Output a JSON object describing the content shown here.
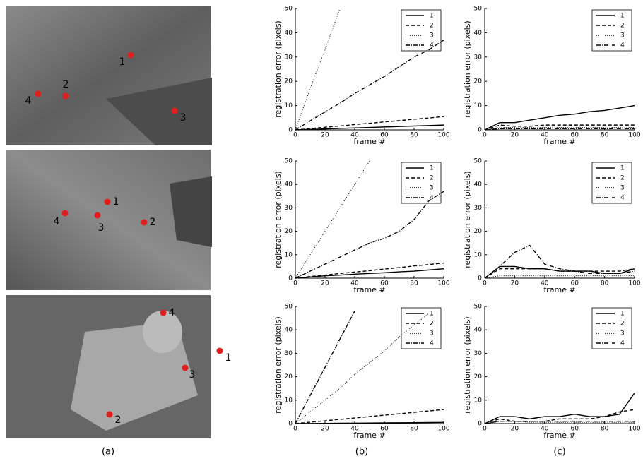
{
  "captions": [
    "(a)",
    "(b)",
    "(c)"
  ],
  "photos": [
    {
      "markers": [
        {
          "label": "1"
        },
        {
          "label": "2"
        },
        {
          "label": "3"
        },
        {
          "label": "4"
        }
      ]
    },
    {
      "markers": [
        {
          "label": "1"
        },
        {
          "label": "2"
        },
        {
          "label": "3"
        },
        {
          "label": "4"
        }
      ]
    },
    {
      "markers": [
        {
          "label": "1"
        },
        {
          "label": "2"
        },
        {
          "label": "3"
        },
        {
          "label": "4"
        }
      ]
    }
  ],
  "chart_data": [
    {
      "type": "line",
      "xlabel": "frame #",
      "ylabel": "registration error (pixels)",
      "x": [
        0,
        10,
        20,
        30,
        40,
        50,
        60,
        70,
        80,
        90,
        100
      ],
      "xlim": [
        0,
        100
      ],
      "ylim": [
        0,
        50
      ],
      "xticks": [
        0,
        20,
        40,
        60,
        80,
        100
      ],
      "yticks": [
        0,
        10,
        20,
        30,
        40,
        50
      ],
      "series": [
        {
          "name": "1",
          "color": "#000",
          "style": "solid",
          "values": [
            0,
            0.2,
            0.4,
            0.6,
            0.8,
            1,
            1.2,
            1.4,
            1.6,
            1.8,
            2
          ]
        },
        {
          "name": "2",
          "color": "#000",
          "style": "dashed",
          "values": [
            0,
            0.5,
            1.1,
            1.6,
            2.2,
            2.7,
            3.3,
            3.8,
            4.4,
            4.9,
            5.5
          ]
        },
        {
          "name": "3",
          "color": "#000",
          "style": "dotted",
          "values": [
            0,
            17,
            33,
            50,
            null,
            null,
            null,
            null,
            null,
            null,
            null
          ]
        },
        {
          "name": "4",
          "color": "#000",
          "style": "dashdot",
          "values": [
            0,
            3.7,
            7.4,
            11,
            15,
            18.5,
            22,
            26,
            30,
            33,
            37
          ]
        }
      ]
    },
    {
      "type": "line",
      "xlabel": "frame #",
      "ylabel": "registration error (pixels)",
      "x": [
        0,
        10,
        20,
        30,
        40,
        50,
        60,
        70,
        80,
        90,
        100
      ],
      "xlim": [
        0,
        100
      ],
      "ylim": [
        0,
        50
      ],
      "xticks": [
        0,
        20,
        40,
        60,
        80,
        100
      ],
      "yticks": [
        0,
        10,
        20,
        30,
        40,
        50
      ],
      "series": [
        {
          "name": "1",
          "color": "#000",
          "style": "solid",
          "values": [
            0,
            3,
            3,
            4,
            5,
            6,
            6.5,
            7.5,
            8,
            9,
            10
          ]
        },
        {
          "name": "2",
          "color": "#000",
          "style": "dashed",
          "values": [
            0,
            2,
            1.5,
            1.5,
            2,
            2,
            2,
            2,
            2,
            2,
            2
          ]
        },
        {
          "name": "3",
          "color": "#000",
          "style": "dotted",
          "values": [
            0,
            1,
            1,
            1,
            1,
            1,
            1,
            1,
            1,
            1,
            1
          ]
        },
        {
          "name": "4",
          "color": "#000",
          "style": "dashdot",
          "values": [
            0,
            0.5,
            0.5,
            0.5,
            0.5,
            0.5,
            0.5,
            0.5,
            0.5,
            0.5,
            0.5
          ]
        }
      ]
    },
    {
      "type": "line",
      "xlabel": "frame #",
      "ylabel": "registration error (pixels)",
      "x": [
        0,
        10,
        20,
        30,
        40,
        50,
        60,
        70,
        80,
        90,
        100
      ],
      "xlim": [
        0,
        100
      ],
      "ylim": [
        0,
        50
      ],
      "xticks": [
        0,
        20,
        40,
        60,
        80,
        100
      ],
      "yticks": [
        0,
        10,
        20,
        30,
        40,
        50
      ],
      "series": [
        {
          "name": "1",
          "color": "#000",
          "style": "solid",
          "values": [
            0,
            0.5,
            1,
            1.3,
            1.7,
            2,
            2.3,
            2.7,
            3,
            3.5,
            4
          ]
        },
        {
          "name": "2",
          "color": "#000",
          "style": "dashed",
          "values": [
            0,
            0.7,
            1.3,
            2,
            2.6,
            3.2,
            3.9,
            4.5,
            5.2,
            5.8,
            6.5
          ]
        },
        {
          "name": "3",
          "color": "#000",
          "style": "dotted",
          "values": [
            0,
            10,
            20,
            30,
            40,
            50,
            null,
            null,
            null,
            null,
            null
          ]
        },
        {
          "name": "4",
          "color": "#000",
          "style": "dashdot",
          "values": [
            0,
            3,
            6,
            9,
            12,
            15,
            17,
            20,
            25,
            33,
            37
          ]
        }
      ]
    },
    {
      "type": "line",
      "xlabel": "frame #",
      "ylabel": "registration error (pixels)",
      "x": [
        0,
        10,
        20,
        30,
        40,
        50,
        60,
        70,
        80,
        90,
        100
      ],
      "xlim": [
        0,
        100
      ],
      "ylim": [
        0,
        50
      ],
      "xticks": [
        0,
        20,
        40,
        60,
        80,
        100
      ],
      "yticks": [
        0,
        10,
        20,
        30,
        40,
        50
      ],
      "series": [
        {
          "name": "1",
          "color": "#000",
          "style": "solid",
          "values": [
            0,
            5,
            5,
            4,
            4,
            3,
            3,
            3,
            2,
            2,
            4
          ]
        },
        {
          "name": "2",
          "color": "#000",
          "style": "dashed",
          "values": [
            0,
            4,
            4,
            4,
            4,
            3,
            3,
            3,
            3,
            3,
            4
          ]
        },
        {
          "name": "3",
          "color": "#000",
          "style": "dotted",
          "values": [
            0,
            1,
            1,
            1,
            1,
            1,
            1,
            1,
            1,
            1,
            1
          ]
        },
        {
          "name": "4",
          "color": "#000",
          "style": "dashdot",
          "values": [
            0,
            5,
            11,
            14,
            6,
            4,
            3,
            2,
            2,
            2,
            3
          ]
        }
      ]
    },
    {
      "type": "line",
      "xlabel": "frame #",
      "ylabel": "registration error (pixels)",
      "x": [
        0,
        10,
        20,
        30,
        40,
        50,
        60,
        70,
        80,
        90,
        100
      ],
      "xlim": [
        0,
        100
      ],
      "ylim": [
        0,
        50
      ],
      "xticks": [
        0,
        20,
        40,
        60,
        80,
        100
      ],
      "yticks": [
        0,
        10,
        20,
        30,
        40,
        50
      ],
      "series": [
        {
          "name": "1",
          "color": "#000",
          "style": "solid",
          "values": [
            0,
            0.05,
            0.1,
            0.15,
            0.2,
            0.25,
            0.3,
            0.35,
            0.4,
            0.45,
            0.5
          ]
        },
        {
          "name": "2",
          "color": "#000",
          "style": "dashed",
          "values": [
            0,
            0.6,
            1.2,
            1.8,
            2.4,
            3,
            3.6,
            4.2,
            4.8,
            5.4,
            6
          ]
        },
        {
          "name": "3",
          "color": "#000",
          "style": "dotted",
          "values": [
            0,
            5,
            10,
            15,
            21,
            26,
            31,
            37,
            42,
            47,
            null
          ]
        },
        {
          "name": "4",
          "color": "#000",
          "style": "dashdot",
          "values": [
            0,
            12,
            24,
            36,
            48,
            null,
            null,
            null,
            null,
            null,
            null
          ]
        }
      ]
    },
    {
      "type": "line",
      "xlabel": "frame #",
      "ylabel": "registration error (pixels)",
      "x": [
        0,
        10,
        20,
        30,
        40,
        50,
        60,
        70,
        80,
        90,
        100
      ],
      "xlim": [
        0,
        100
      ],
      "ylim": [
        0,
        50
      ],
      "xticks": [
        0,
        20,
        40,
        60,
        80,
        100
      ],
      "yticks": [
        0,
        10,
        20,
        30,
        40,
        50
      ],
      "series": [
        {
          "name": "1",
          "color": "#000",
          "style": "solid",
          "values": [
            0,
            3,
            3,
            2,
            3,
            3,
            4,
            3,
            3,
            4,
            13
          ]
        },
        {
          "name": "2",
          "color": "#000",
          "style": "dashed",
          "values": [
            0,
            2,
            1,
            1,
            1,
            2,
            2,
            2,
            3,
            5,
            6
          ]
        },
        {
          "name": "3",
          "color": "#000",
          "style": "dotted",
          "values": [
            0,
            1,
            1,
            0.5,
            0.5,
            0.5,
            0.5,
            0.5,
            0.5,
            0.5,
            0.5
          ]
        },
        {
          "name": "4",
          "color": "#000",
          "style": "dashdot",
          "values": [
            0,
            1,
            1,
            1,
            1,
            1,
            1,
            1,
            1,
            1,
            1
          ]
        }
      ]
    }
  ]
}
